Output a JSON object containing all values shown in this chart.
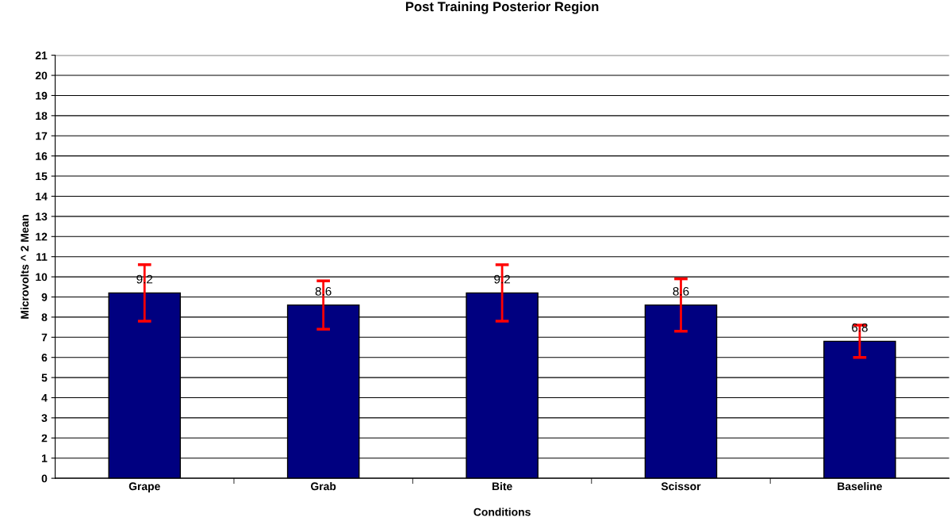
{
  "chart_data": {
    "type": "bar",
    "title": "Post Training Posterior Region",
    "xlabel": "Conditions",
    "ylabel": "Microvolts ^ 2 Mean",
    "categories": [
      "Grape",
      "Grab",
      "Bite",
      "Scissor",
      "Baseline"
    ],
    "values": [
      9.2,
      8.6,
      9.2,
      8.6,
      6.8
    ],
    "errors": [
      1.4,
      1.2,
      1.4,
      1.3,
      0.8
    ],
    "color": "#000080",
    "data_labels": true,
    "ylim": [
      0,
      21
    ],
    "yticks": [
      0,
      1,
      2,
      3,
      4,
      5,
      6,
      7,
      8,
      9,
      10,
      11,
      12,
      13,
      14,
      15,
      16,
      17,
      18,
      19,
      20,
      21
    ],
    "grid": "y",
    "legend": false
  }
}
